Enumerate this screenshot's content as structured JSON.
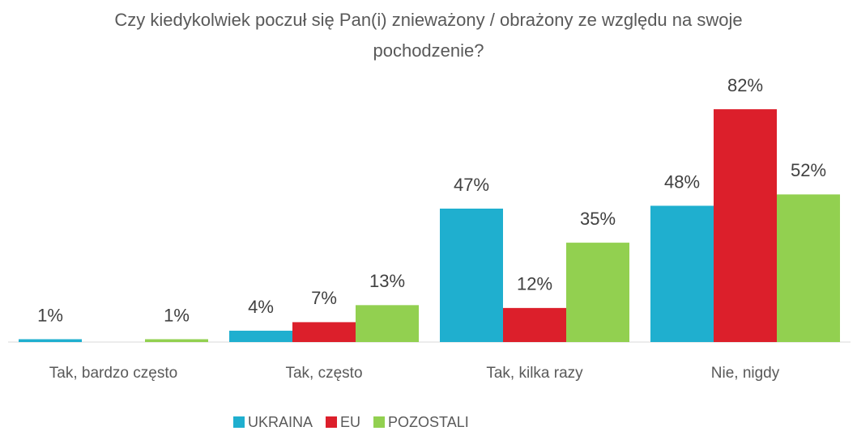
{
  "chart_data": {
    "type": "bar",
    "title": "Czy kiedykolwiek poczuł się Pan(i) znieważony / obrażony ze względu na swoje pochodzenie?",
    "categories": [
      "Tak, bardzo często",
      "Tak, często",
      "Tak, kilka razy",
      "Nie, nigdy"
    ],
    "series": [
      {
        "name": "UKRAINA",
        "color": "#1fafcf",
        "values": [
          1,
          4,
          47,
          48
        ],
        "value_labels": [
          "1%",
          "4%",
          "47%",
          "48%"
        ]
      },
      {
        "name": "EU",
        "color": "#dc1f2b",
        "values": [
          null,
          7,
          12,
          82
        ],
        "value_labels": [
          null,
          "7%",
          "12%",
          "82%"
        ]
      },
      {
        "name": "POZOSTALI",
        "color": "#92d050",
        "values": [
          1,
          13,
          35,
          52
        ],
        "value_labels": [
          "1%",
          "13%",
          "35%",
          "52%"
        ]
      }
    ],
    "ylim": [
      0,
      90
    ],
    "grid": false,
    "legend": "bottom"
  }
}
